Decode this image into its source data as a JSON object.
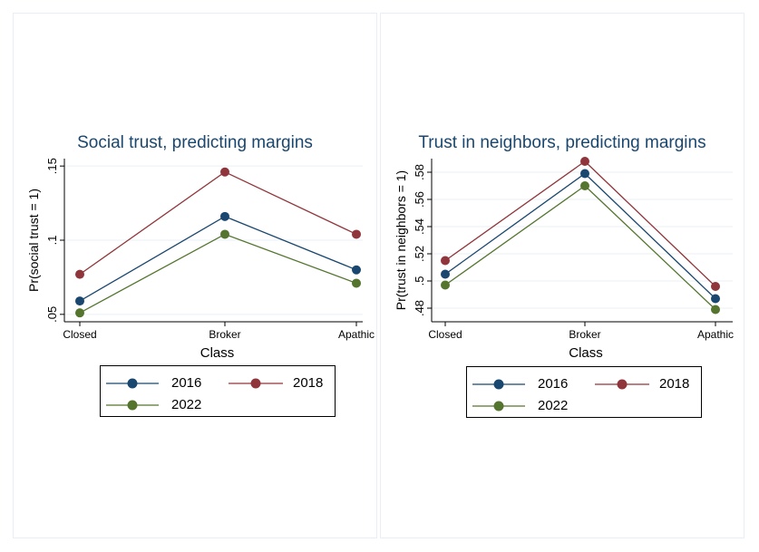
{
  "chart_data": [
    {
      "type": "line",
      "title": "Social trust, predicting margins",
      "xlabel": "Class",
      "ylabel": "Pr(social trust = 1)",
      "categories": [
        "Closed",
        "Broker",
        "Apathic"
      ],
      "ylim": [
        0.045,
        0.155
      ],
      "yticks": [
        0.05,
        0.1,
        0.15
      ],
      "ytick_labels": [
        ".05",
        ".1",
        ".15"
      ],
      "grid": true,
      "legend": "bottom",
      "series": [
        {
          "name": "2016",
          "color": "#1a476f",
          "values": [
            0.059,
            0.116,
            0.08
          ]
        },
        {
          "name": "2018",
          "color": "#90353b",
          "values": [
            0.077,
            0.146,
            0.104
          ]
        },
        {
          "name": "2022",
          "color": "#55752f",
          "values": [
            0.051,
            0.104,
            0.071
          ]
        }
      ]
    },
    {
      "type": "line",
      "title": "Trust in neighbors, predicting margins",
      "xlabel": "Class",
      "ylabel": "Pr(trust in neighbors = 1)",
      "categories": [
        "Closed",
        "Broker",
        "Apathic"
      ],
      "ylim": [
        0.47,
        0.59
      ],
      "yticks": [
        0.48,
        0.5,
        0.52,
        0.54,
        0.56,
        0.58
      ],
      "ytick_labels": [
        ".48",
        ".5",
        ".52",
        ".54",
        ".56",
        ".58"
      ],
      "grid": true,
      "legend": "bottom",
      "series": [
        {
          "name": "2016",
          "color": "#1a476f",
          "values": [
            0.505,
            0.579,
            0.487
          ]
        },
        {
          "name": "2018",
          "color": "#90353b",
          "values": [
            0.515,
            0.588,
            0.496
          ]
        },
        {
          "name": "2022",
          "color": "#55752f",
          "values": [
            0.497,
            0.57,
            0.479
          ]
        }
      ]
    }
  ]
}
